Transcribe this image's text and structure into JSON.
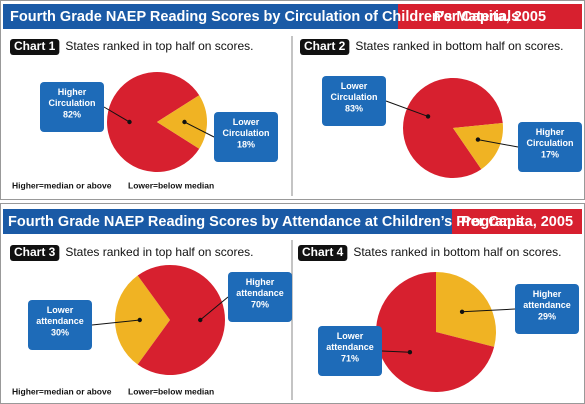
{
  "sections": [
    {
      "title": "Fourth Grade NAEP Reading Scores by Circulation of Children’s Materials",
      "badge": "Per Capita, 2005",
      "note_high": "Higher=median or above",
      "note_low": "Lower=below median"
    },
    {
      "title": "Fourth Grade NAEP Reading Scores by Attendance at Children’s Programs",
      "badge": "Per Capita, 2005",
      "note_high": "Higher=median or above",
      "note_low": "Lower=below median"
    }
  ],
  "chart_data": [
    {
      "type": "pie",
      "label": "Chart 1",
      "title": "States ranked in top half on scores.",
      "categories": [
        "Higher Circulation",
        "Lower Circulation"
      ],
      "values": [
        82,
        18
      ],
      "value_labels": [
        "82%",
        "18%"
      ],
      "colors": [
        "#d7202f",
        "#f0b323"
      ]
    },
    {
      "type": "pie",
      "label": "Chart 2",
      "title": "States ranked in bottom half on scores.",
      "categories": [
        "Lower Circulation",
        "Higher Circulation"
      ],
      "values": [
        83,
        17
      ],
      "value_labels": [
        "83%",
        "17%"
      ],
      "colors": [
        "#d7202f",
        "#f0b323"
      ]
    },
    {
      "type": "pie",
      "label": "Chart 3",
      "title": "States ranked in top half on scores.",
      "categories": [
        "Lower attendance",
        "Higher attendance"
      ],
      "values": [
        30,
        70
      ],
      "value_labels": [
        "30%",
        "70%"
      ],
      "colors": [
        "#f0b323",
        "#d7202f"
      ]
    },
    {
      "type": "pie",
      "label": "Chart 4",
      "title": "States ranked in bottom half on scores.",
      "categories": [
        "Higher attendance",
        "Lower attendance"
      ],
      "values": [
        29,
        71
      ],
      "value_labels": [
        "29%",
        "71%"
      ],
      "colors": [
        "#f0b323",
        "#d7202f"
      ]
    }
  ]
}
